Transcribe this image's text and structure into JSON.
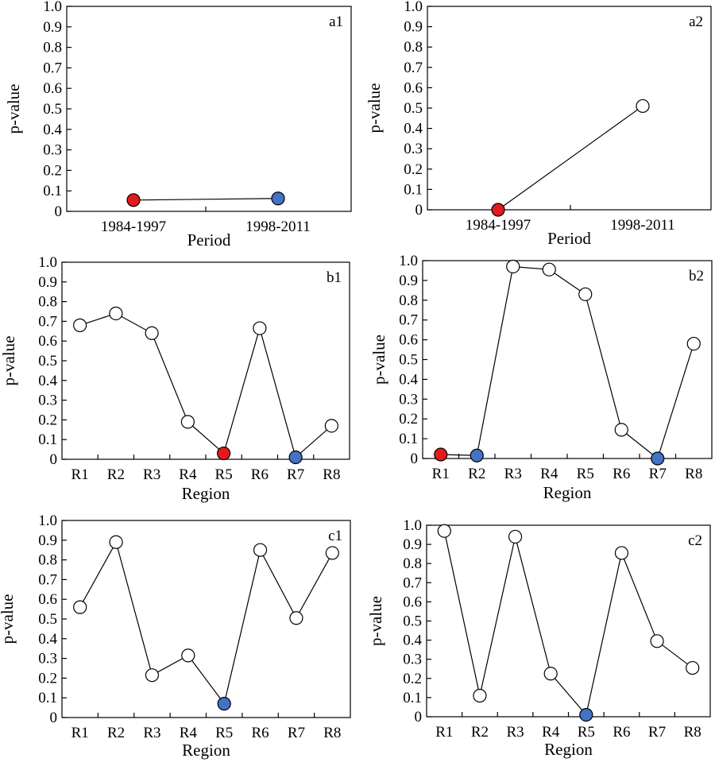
{
  "colors": {
    "open": "#ffffff",
    "red": "#e31a1c",
    "blue": "#4472c4",
    "axis": "#000000"
  },
  "chart_data": [
    {
      "id": "a1",
      "type": "line",
      "panel_label": "a1",
      "categories": [
        "1984-1997",
        "1998-2011"
      ],
      "values": [
        0.055,
        0.063
      ],
      "markers": [
        "red",
        "blue"
      ],
      "xlabel": "Period",
      "ylabel": "p-value",
      "ylim": [
        0,
        1
      ],
      "yticks": [
        "0",
        "0.1",
        "0.2",
        "0.3",
        "0.4",
        "0.5",
        "0.6",
        "0.7",
        "0.8",
        "0.9",
        "1.0"
      ],
      "grid": false
    },
    {
      "id": "a2",
      "type": "line",
      "panel_label": "a2",
      "categories": [
        "1984-1997",
        "1998-2011"
      ],
      "values": [
        0.0,
        0.51
      ],
      "markers": [
        "red",
        "open"
      ],
      "xlabel": "Period",
      "ylabel": "p-value",
      "ylim": [
        0,
        1
      ],
      "yticks": [
        "0",
        "0.1",
        "0.2",
        "0.3",
        "0.4",
        "0.5",
        "0.6",
        "0.7",
        "0.8",
        "0.9",
        "1.0"
      ],
      "grid": false
    },
    {
      "id": "b1",
      "type": "line",
      "panel_label": "b1",
      "categories": [
        "R1",
        "R2",
        "R3",
        "R4",
        "R5",
        "R6",
        "R7",
        "R8"
      ],
      "values": [
        0.68,
        0.74,
        0.64,
        0.19,
        0.03,
        0.665,
        0.01,
        0.17
      ],
      "markers": [
        "open",
        "open",
        "open",
        "open",
        "red",
        "open",
        "blue",
        "open"
      ],
      "xlabel": "Region",
      "ylabel": "p-value",
      "ylim": [
        0,
        1
      ],
      "yticks": [
        "0",
        "0.1",
        "0.2",
        "0.3",
        "0.4",
        "0.5",
        "0.6",
        "0.7",
        "0.8",
        "0.9",
        "1.0"
      ],
      "grid": false
    },
    {
      "id": "b2",
      "type": "line",
      "panel_label": "b2",
      "categories": [
        "R1",
        "R2",
        "R3",
        "R4",
        "R5",
        "R6",
        "R7",
        "R8"
      ],
      "values": [
        0.02,
        0.015,
        0.97,
        0.955,
        0.83,
        0.145,
        0.0,
        0.58
      ],
      "markers": [
        "red",
        "blue",
        "open",
        "open",
        "open",
        "open",
        "blue",
        "open"
      ],
      "xlabel": "Region",
      "ylabel": "p-value",
      "ylim": [
        0,
        1
      ],
      "yticks": [
        "0",
        "0.1",
        "0.2",
        "0.3",
        "0.4",
        "0.5",
        "0.6",
        "0.7",
        "0.8",
        "0.9",
        "1.0"
      ],
      "grid": false
    },
    {
      "id": "c1",
      "type": "line",
      "panel_label": "c1",
      "categories": [
        "R1",
        "R2",
        "R3",
        "R4",
        "R5",
        "R6",
        "R7",
        "R8"
      ],
      "values": [
        0.56,
        0.89,
        0.215,
        0.315,
        0.07,
        0.85,
        0.505,
        0.835
      ],
      "markers": [
        "open",
        "open",
        "open",
        "open",
        "blue",
        "open",
        "open",
        "open"
      ],
      "xlabel": "Region",
      "ylabel": "p-value",
      "ylim": [
        0,
        1
      ],
      "yticks": [
        "0",
        "0.1",
        "0.2",
        "0.3",
        "0.4",
        "0.5",
        "0.6",
        "0.7",
        "0.8",
        "0.9",
        "1.0"
      ],
      "grid": false
    },
    {
      "id": "c2",
      "type": "line",
      "panel_label": "c2",
      "categories": [
        "R1",
        "R2",
        "R3",
        "R4",
        "R5",
        "R6",
        "R7",
        "R8"
      ],
      "values": [
        0.97,
        0.11,
        0.94,
        0.225,
        0.01,
        0.855,
        0.395,
        0.255
      ],
      "markers": [
        "open",
        "open",
        "open",
        "open",
        "blue",
        "open",
        "open",
        "open"
      ],
      "xlabel": "Region",
      "ylabel": "p-value",
      "ylim": [
        0,
        1
      ],
      "yticks": [
        "0",
        "0.1",
        "0.2",
        "0.3",
        "0.4",
        "0.5",
        "0.6",
        "0.7",
        "0.8",
        "0.9",
        "1.0"
      ],
      "grid": false
    }
  ]
}
